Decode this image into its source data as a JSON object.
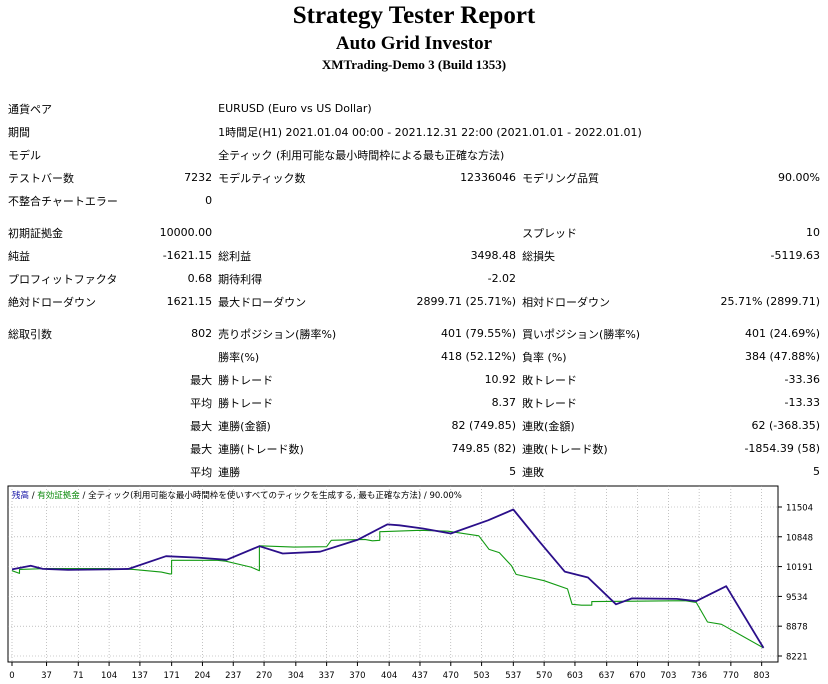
{
  "header": {
    "title": "Strategy Tester Report",
    "ea_name": "Auto Grid Investor",
    "server": "XMTrading-Demo 3 (Build 1353)"
  },
  "settings": {
    "symbol_label": "通貨ペア",
    "symbol_value": "EURUSD (Euro vs US Dollar)",
    "period_label": "期間",
    "period_value": "1時間足(H1) 2021.01.04 00:00 - 2021.12.31 22:00 (2021.01.01 - 2022.01.01)",
    "model_label": "モデル",
    "model_value": "全ティック (利用可能な最小時間枠による最も正確な方法)",
    "bars_label": "テストバー数",
    "bars_value": "7232",
    "ticks_label": "モデルティック数",
    "ticks_value": "12336046",
    "quality_label": "モデリング品質",
    "quality_value": "90.00%",
    "errors_label": "不整合チャートエラー",
    "errors_value": "0"
  },
  "stats": {
    "deposit_label": "初期証拠金",
    "deposit_value": "10000.00",
    "spread_label": "スプレッド",
    "spread_value": "10",
    "net_label": "純益",
    "net_value": "-1621.15",
    "gross_profit_label": "総利益",
    "gross_profit_value": "3498.48",
    "gross_loss_label": "総損失",
    "gross_loss_value": "-5119.63",
    "pf_label": "プロフィットファクタ",
    "pf_value": "0.68",
    "expected_label": "期待利得",
    "expected_value": "-2.02",
    "abs_dd_label": "絶対ドローダウン",
    "abs_dd_value": "1621.15",
    "max_dd_label": "最大ドローダウン",
    "max_dd_value": "2899.71 (25.71%)",
    "rel_dd_label": "相対ドローダウン",
    "rel_dd_value": "25.71% (2899.71)",
    "total_label": "総取引数",
    "total_value": "802",
    "short_label": "売りポジション(勝率%)",
    "short_value": "401 (79.55%)",
    "long_label": "買いポジション(勝率%)",
    "long_value": "401 (24.69%)",
    "win_rate_label": "勝率(%)",
    "win_rate_value": "418 (52.12%)",
    "loss_rate_label": "負率 (%)",
    "loss_rate_value": "384 (47.88%)",
    "max_label": "最大",
    "avg_label": "平均",
    "win_trade_label": "勝トレード",
    "loss_trade_label": "敗トレード",
    "max_win_value": "10.92",
    "max_loss_value": "-33.36",
    "avg_win_value": "8.37",
    "avg_loss_value": "-13.33",
    "consec_win_money_label": "連勝(金額)",
    "consec_win_money_value": "82 (749.85)",
    "consec_loss_money_label": "連敗(金額)",
    "consec_loss_money_value": "62 (-368.35)",
    "consec_win_trades_label": "連勝(トレード数)",
    "consec_win_trades_value": "749.85 (82)",
    "consec_loss_trades_label": "連敗(トレード数)",
    "consec_loss_trades_value": "-1854.39 (58)",
    "consec_win_label": "連勝",
    "avg_consec_win_value": "5",
    "consec_loss_label": "連敗",
    "avg_consec_loss_value": "5"
  },
  "chart_data": {
    "type": "line",
    "legend": {
      "balance": "残高",
      "sep": " / ",
      "equity": "有効証拠金",
      "sep2": " / ",
      "info": "全ティック(利用可能な最小時間枠を使いすべてのティックを生成する, 最も正確な方法)",
      "sep3": " / ",
      "quality": "90.00%"
    },
    "colors": {
      "balance": "#2b0f8a",
      "equity": "#129a12",
      "legend_balance": "#1b1aa8",
      "legend_equity": "#0b8a0b",
      "grid": "#9c9c9c"
    },
    "xlim": [
      0,
      813
    ],
    "ylim": [
      8221,
      11712
    ],
    "x_ticks": [
      "0",
      "37",
      "71",
      "104",
      "137",
      "171",
      "204",
      "237",
      "270",
      "304",
      "337",
      "370",
      "404",
      "437",
      "470",
      "503",
      "537",
      "570",
      "603",
      "637",
      "670",
      "703",
      "736",
      "770",
      "803"
    ],
    "y_ticks": [
      "11504",
      "10848",
      "10191",
      "9534",
      "8878",
      "8221"
    ],
    "series": [
      {
        "name": "残高",
        "points": [
          [
            0,
            10130
          ],
          [
            20,
            10210
          ],
          [
            33,
            10140
          ],
          [
            60,
            10120
          ],
          [
            103,
            10130
          ],
          [
            125,
            10140
          ],
          [
            165,
            10420
          ],
          [
            199,
            10390
          ],
          [
            230,
            10340
          ],
          [
            265,
            10640
          ],
          [
            290,
            10480
          ],
          [
            330,
            10520
          ],
          [
            370,
            10780
          ],
          [
            402,
            11120
          ],
          [
            415,
            11100
          ],
          [
            440,
            11030
          ],
          [
            470,
            10920
          ],
          [
            510,
            11210
          ],
          [
            537,
            11450
          ],
          [
            565,
            10740
          ],
          [
            592,
            10080
          ],
          [
            617,
            9950
          ],
          [
            647,
            9360
          ],
          [
            664,
            9490
          ],
          [
            712,
            9480
          ],
          [
            733,
            9430
          ],
          [
            765,
            9760
          ],
          [
            805,
            8400
          ]
        ]
      },
      {
        "name": "有効証拠金",
        "points": [
          [
            0,
            10100
          ],
          [
            8,
            10040
          ],
          [
            8,
            10130
          ],
          [
            40,
            10150
          ],
          [
            103,
            10150
          ],
          [
            130,
            10130
          ],
          [
            160,
            10070
          ],
          [
            169,
            10030
          ],
          [
            171,
            10030
          ],
          [
            171,
            10330
          ],
          [
            220,
            10330
          ],
          [
            229,
            10310
          ],
          [
            256,
            10180
          ],
          [
            265,
            10100
          ],
          [
            265,
            10650
          ],
          [
            302,
            10620
          ],
          [
            337,
            10630
          ],
          [
            342,
            10770
          ],
          [
            378,
            10790
          ],
          [
            386,
            10760
          ],
          [
            394,
            10770
          ],
          [
            394,
            10960
          ],
          [
            437,
            10990
          ],
          [
            467,
            10970
          ],
          [
            500,
            10870
          ],
          [
            511,
            10570
          ],
          [
            522,
            10500
          ],
          [
            535,
            10210
          ],
          [
            540,
            10020
          ],
          [
            570,
            9880
          ],
          [
            595,
            9700
          ],
          [
            600,
            9360
          ],
          [
            610,
            9340
          ],
          [
            621,
            9340
          ],
          [
            621,
            9420
          ],
          [
            680,
            9430
          ],
          [
            721,
            9440
          ],
          [
            733,
            9400
          ],
          [
            745,
            8970
          ],
          [
            760,
            8920
          ],
          [
            805,
            8400
          ]
        ]
      }
    ]
  }
}
